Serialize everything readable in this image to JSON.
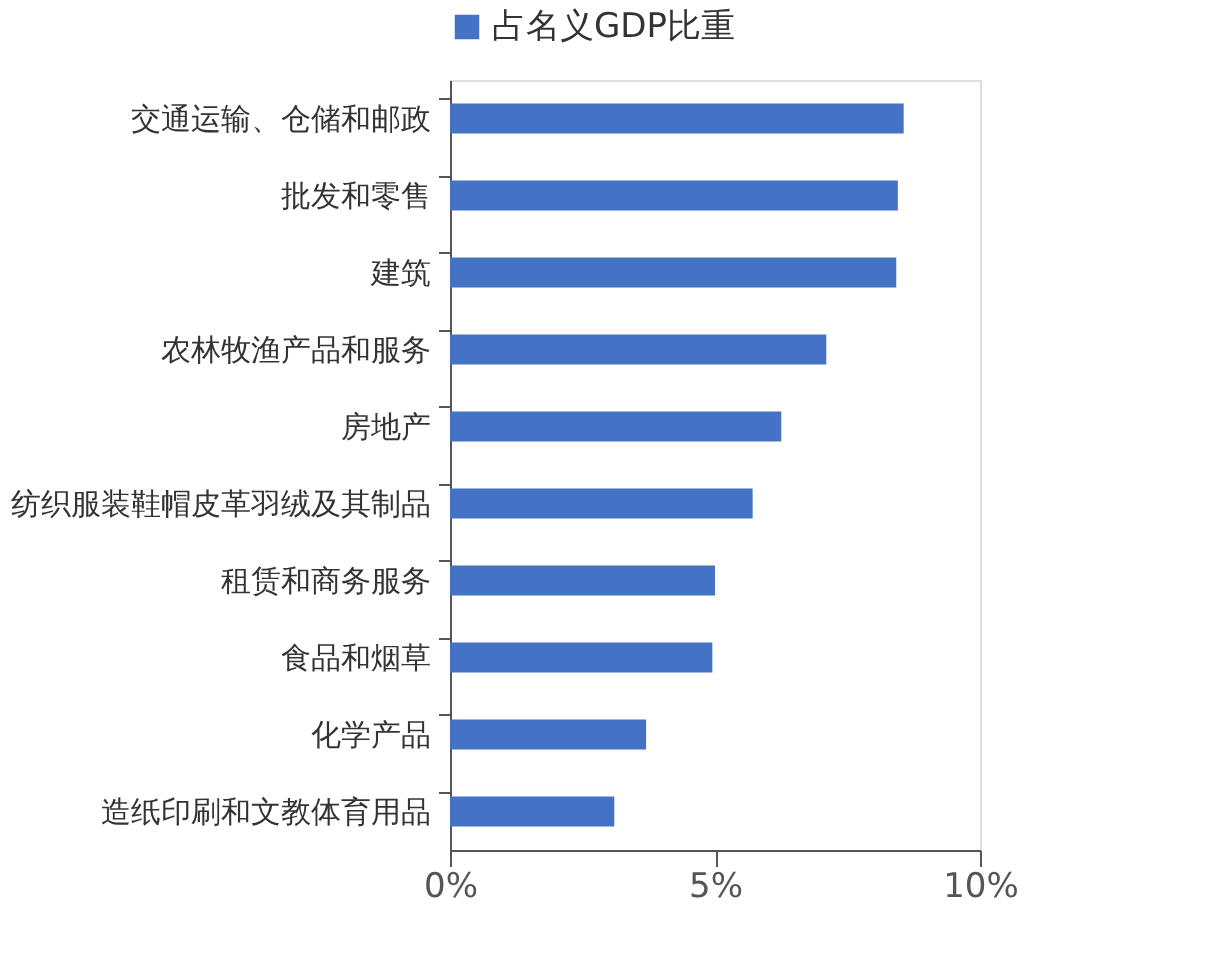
{
  "chart_data": {
    "type": "bar",
    "orientation": "horizontal",
    "categories": [
      "交通运输、仓储和邮政",
      "批发和零售",
      "建筑",
      "农林牧渔产品和服务",
      "房地产",
      "纺织服装鞋帽皮革羽绒及其制品",
      "租赁和商务服务",
      "食品和烟草",
      "化学产品",
      "造纸印刷和文教体育用品"
    ],
    "series": [
      {
        "name": "占名义GDP比重",
        "color": "#4472c4",
        "values": [
          8.56,
          8.45,
          8.42,
          7.1,
          6.25,
          5.71,
          5.0,
          4.95,
          3.7,
          3.1
        ]
      }
    ],
    "xlim": [
      0,
      10
    ],
    "xticks": [
      {
        "value": 0,
        "label": "0%"
      },
      {
        "value": 5,
        "label": "5%"
      },
      {
        "value": 10,
        "label": "10%"
      }
    ],
    "legend": "top",
    "grid": false
  }
}
